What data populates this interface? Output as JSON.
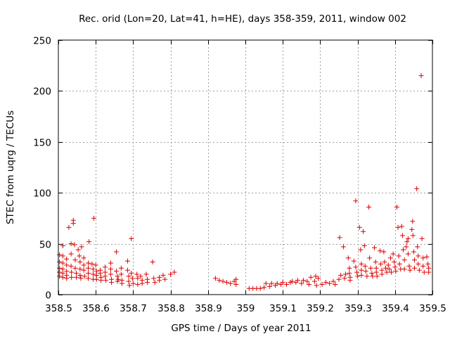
{
  "chart_data": {
    "type": "scatter",
    "title": "Rec. orid (Lon=20, Lat=41, h=HE), days 358-359, 2011, window 002",
    "xlabel": "GPS time / Days of year 2011",
    "ylabel": "STEC from uqrg / TECUs",
    "xlim": [
      358.5,
      359.5
    ],
    "ylim": [
      0,
      250
    ],
    "xticks": [
      358.5,
      358.6,
      358.7,
      358.8,
      358.9,
      359.0,
      359.1,
      359.2,
      359.3,
      359.4,
      359.5
    ],
    "xtick_labels": [
      "358.5",
      "358.6",
      "358.7",
      "358.8",
      "358.9",
      "359",
      "359.1",
      "359.2",
      "359.3",
      "359.4",
      "359.5"
    ],
    "yticks": [
      0,
      50,
      100,
      150,
      200,
      250
    ],
    "ytick_labels": [
      "0",
      "50",
      "100",
      "150",
      "200",
      "250"
    ],
    "grid": true,
    "marker": "+",
    "color": "#dd0000",
    "series": [
      {
        "points": [
          [
            358.503,
            39
          ],
          [
            358.503,
            32
          ],
          [
            358.503,
            26
          ],
          [
            358.503,
            22
          ],
          [
            358.503,
            18
          ],
          [
            358.512,
            38
          ],
          [
            358.512,
            31
          ],
          [
            358.512,
            25
          ],
          [
            358.512,
            21
          ],
          [
            358.512,
            17
          ],
          [
            358.512,
            48
          ],
          [
            358.522,
            35
          ],
          [
            358.522,
            29
          ],
          [
            358.522,
            23
          ],
          [
            358.522,
            19
          ],
          [
            358.522,
            16
          ],
          [
            358.528,
            66
          ],
          [
            358.534,
            50
          ],
          [
            358.54,
            70
          ],
          [
            358.54,
            73
          ],
          [
            358.534,
            40
          ],
          [
            358.534,
            28
          ],
          [
            358.535,
            22
          ],
          [
            358.535,
            17
          ],
          [
            358.543,
            49
          ],
          [
            358.545,
            34
          ],
          [
            358.545,
            26
          ],
          [
            358.548,
            21
          ],
          [
            358.548,
            17
          ],
          [
            358.553,
            44
          ],
          [
            358.556,
            38
          ],
          [
            358.558,
            32
          ],
          [
            358.558,
            25
          ],
          [
            358.558,
            19
          ],
          [
            358.56,
            16
          ],
          [
            358.562,
            47
          ],
          [
            358.568,
            36
          ],
          [
            358.568,
            29
          ],
          [
            358.568,
            24
          ],
          [
            358.57,
            18
          ],
          [
            358.58,
            31
          ],
          [
            358.582,
            52
          ],
          [
            358.58,
            26
          ],
          [
            358.58,
            21
          ],
          [
            358.58,
            16
          ],
          [
            358.59,
            30
          ],
          [
            358.595,
            75
          ],
          [
            358.593,
            25
          ],
          [
            358.593,
            20
          ],
          [
            358.593,
            15
          ],
          [
            358.6,
            29
          ],
          [
            358.602,
            23
          ],
          [
            358.602,
            19
          ],
          [
            358.602,
            15
          ],
          [
            358.612,
            24
          ],
          [
            358.612,
            21
          ],
          [
            358.614,
            17
          ],
          [
            358.614,
            14
          ],
          [
            358.625,
            27
          ],
          [
            358.625,
            22
          ],
          [
            358.625,
            18
          ],
          [
            358.627,
            14
          ],
          [
            358.64,
            31
          ],
          [
            358.64,
            25
          ],
          [
            358.64,
            20
          ],
          [
            358.642,
            15
          ],
          [
            358.642,
            12
          ],
          [
            358.655,
            42
          ],
          [
            358.655,
            23
          ],
          [
            358.658,
            18
          ],
          [
            358.658,
            13
          ],
          [
            358.66,
            15
          ],
          [
            358.668,
            26
          ],
          [
            358.668,
            20
          ],
          [
            358.67,
            14
          ],
          [
            358.67,
            11
          ],
          [
            358.685,
            33
          ],
          [
            358.685,
            24
          ],
          [
            358.688,
            18
          ],
          [
            358.688,
            13
          ],
          [
            358.69,
            9
          ],
          [
            358.695,
            55
          ],
          [
            358.695,
            21
          ],
          [
            358.698,
            16
          ],
          [
            358.7,
            11
          ],
          [
            358.71,
            20
          ],
          [
            358.712,
            16
          ],
          [
            358.712,
            10
          ],
          [
            358.72,
            18
          ],
          [
            358.724,
            14
          ],
          [
            358.724,
            11
          ],
          [
            358.735,
            20
          ],
          [
            358.738,
            15
          ],
          [
            358.738,
            12
          ],
          [
            358.752,
            32
          ],
          [
            358.755,
            16
          ],
          [
            358.758,
            12
          ],
          [
            358.77,
            17
          ],
          [
            358.77,
            14
          ],
          [
            358.78,
            19
          ],
          [
            358.785,
            15
          ],
          [
            358.8,
            20
          ],
          [
            358.81,
            22
          ],
          [
            358.92,
            16
          ],
          [
            358.93,
            14
          ],
          [
            358.94,
            13
          ],
          [
            358.95,
            12
          ],
          [
            358.96,
            11
          ],
          [
            358.97,
            13
          ],
          [
            358.975,
            15
          ],
          [
            358.975,
            10
          ],
          [
            359.01,
            6
          ],
          [
            359.02,
            6
          ],
          [
            359.03,
            6
          ],
          [
            359.04,
            6
          ],
          [
            359.05,
            7
          ],
          [
            359.055,
            11
          ],
          [
            359.065,
            8
          ],
          [
            359.07,
            11
          ],
          [
            359.08,
            9
          ],
          [
            359.085,
            11
          ],
          [
            359.095,
            10
          ],
          [
            359.1,
            12
          ],
          [
            359.11,
            10
          ],
          [
            359.12,
            12
          ],
          [
            359.125,
            13
          ],
          [
            359.135,
            12
          ],
          [
            359.14,
            14
          ],
          [
            359.15,
            11
          ],
          [
            359.155,
            14
          ],
          [
            359.165,
            13
          ],
          [
            359.17,
            10
          ],
          [
            359.175,
            17
          ],
          [
            359.185,
            13
          ],
          [
            359.188,
            18
          ],
          [
            359.19,
            9
          ],
          [
            359.195,
            16
          ],
          [
            359.205,
            10
          ],
          [
            359.215,
            12
          ],
          [
            359.225,
            11
          ],
          [
            359.235,
            13
          ],
          [
            359.24,
            10
          ],
          [
            359.25,
            15
          ],
          [
            359.252,
            56
          ],
          [
            359.255,
            19
          ],
          [
            359.262,
            47
          ],
          [
            359.265,
            16
          ],
          [
            359.268,
            20
          ],
          [
            359.275,
            36
          ],
          [
            359.278,
            26
          ],
          [
            359.278,
            21
          ],
          [
            359.28,
            17
          ],
          [
            359.28,
            14
          ],
          [
            359.29,
            33
          ],
          [
            359.295,
            92
          ],
          [
            359.295,
            27
          ],
          [
            359.298,
            22
          ],
          [
            359.3,
            18
          ],
          [
            359.305,
            66
          ],
          [
            359.308,
            44
          ],
          [
            359.31,
            30
          ],
          [
            359.31,
            24
          ],
          [
            359.31,
            19
          ],
          [
            359.315,
            62
          ],
          [
            359.318,
            48
          ],
          [
            359.32,
            28
          ],
          [
            359.322,
            23
          ],
          [
            359.325,
            18
          ],
          [
            359.33,
            86
          ],
          [
            359.332,
            36
          ],
          [
            359.335,
            26
          ],
          [
            359.338,
            21
          ],
          [
            359.34,
            18
          ],
          [
            359.345,
            46
          ],
          [
            359.348,
            32
          ],
          [
            359.35,
            26
          ],
          [
            359.35,
            22
          ],
          [
            359.352,
            18
          ],
          [
            359.36,
            43
          ],
          [
            359.362,
            30
          ],
          [
            359.365,
            24
          ],
          [
            359.365,
            20
          ],
          [
            359.37,
            42
          ],
          [
            359.372,
            32
          ],
          [
            359.375,
            26
          ],
          [
            359.378,
            22
          ],
          [
            359.382,
            29
          ],
          [
            359.385,
            25
          ],
          [
            359.388,
            36
          ],
          [
            359.39,
            22
          ],
          [
            359.395,
            40
          ],
          [
            359.398,
            32
          ],
          [
            359.4,
            27
          ],
          [
            359.402,
            23
          ],
          [
            359.405,
            86
          ],
          [
            359.408,
            66
          ],
          [
            359.41,
            38
          ],
          [
            359.412,
            30
          ],
          [
            359.415,
            25
          ],
          [
            359.418,
            67
          ],
          [
            359.42,
            58
          ],
          [
            359.422,
            44
          ],
          [
            359.425,
            34
          ],
          [
            359.425,
            25
          ],
          [
            359.43,
            47
          ],
          [
            359.432,
            52
          ],
          [
            359.435,
            55
          ],
          [
            359.435,
            40
          ],
          [
            359.438,
            28
          ],
          [
            359.44,
            24
          ],
          [
            359.445,
            64
          ],
          [
            359.447,
            72
          ],
          [
            359.448,
            58
          ],
          [
            359.45,
            42
          ],
          [
            359.452,
            34
          ],
          [
            359.452,
            26
          ],
          [
            359.458,
            104
          ],
          [
            359.46,
            47
          ],
          [
            359.462,
            38
          ],
          [
            359.462,
            30
          ],
          [
            359.465,
            24
          ],
          [
            359.47,
            215
          ],
          [
            359.472,
            55
          ],
          [
            359.475,
            36
          ],
          [
            359.475,
            28
          ],
          [
            359.478,
            22
          ],
          [
            359.485,
            37
          ],
          [
            359.488,
            30
          ],
          [
            359.49,
            26
          ],
          [
            359.49,
            22
          ]
        ]
      }
    ]
  }
}
